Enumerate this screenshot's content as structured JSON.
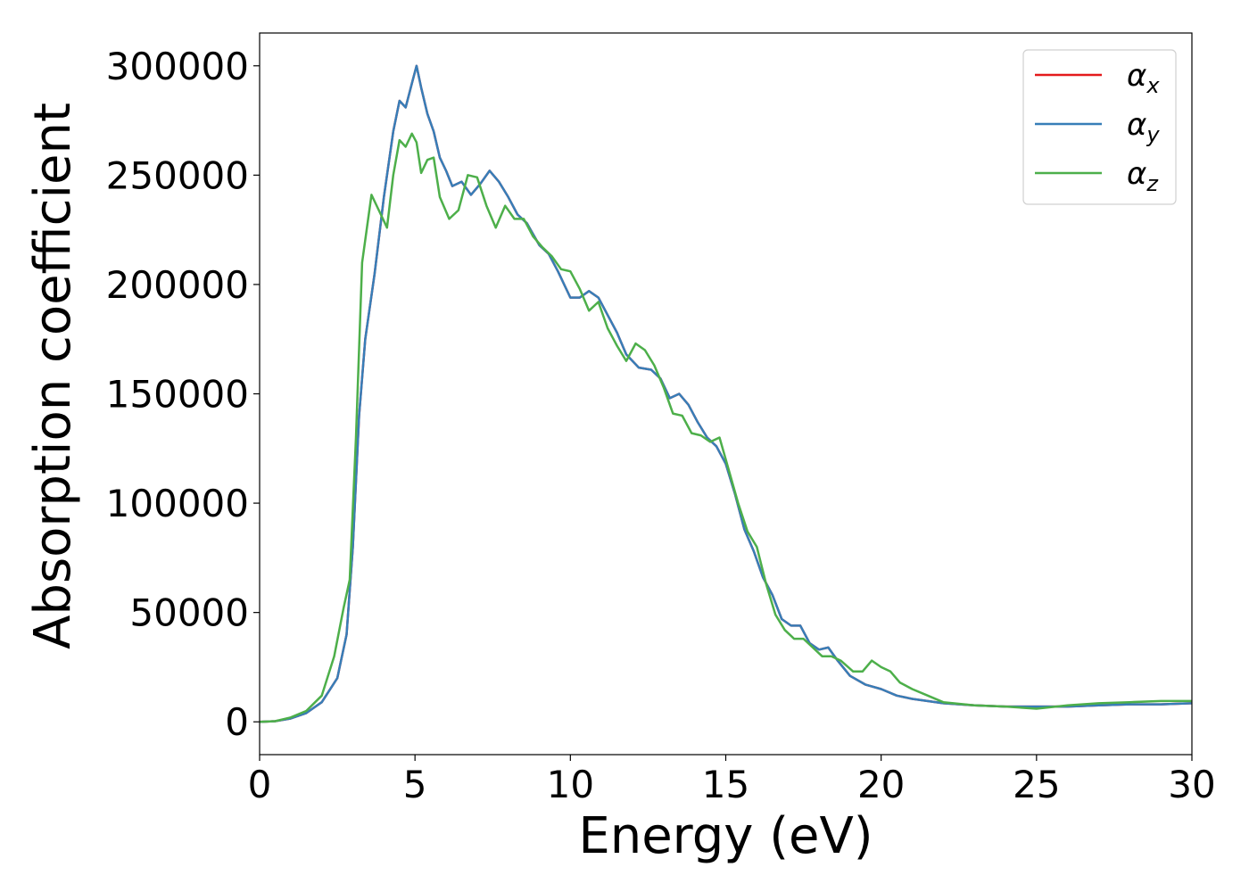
{
  "chart_data": {
    "type": "line",
    "title": "",
    "xlabel": "Energy (eV)",
    "ylabel": "Absorption coefficient",
    "xlim": [
      0,
      30
    ],
    "ylim": [
      -15000,
      315000
    ],
    "xticks": [
      0,
      5,
      10,
      15,
      20,
      25,
      30
    ],
    "yticks": [
      0,
      50000,
      100000,
      150000,
      200000,
      250000,
      300000
    ],
    "grid": false,
    "legend_position": "top-right",
    "series": [
      {
        "name": "αx",
        "legend_main": "α",
        "legend_sub": "x",
        "color": "#e41a1c",
        "x": [
          0,
          0.5,
          1.0,
          1.5,
          2.0,
          2.5,
          2.8,
          3.0,
          3.2,
          3.4,
          3.7,
          4.0,
          4.3,
          4.5,
          4.7,
          4.9,
          5.05,
          5.2,
          5.4,
          5.6,
          5.8,
          6.0,
          6.2,
          6.5,
          6.8,
          7.1,
          7.4,
          7.7,
          8.0,
          8.3,
          8.6,
          9.0,
          9.3,
          9.6,
          10.0,
          10.3,
          10.6,
          10.9,
          11.2,
          11.5,
          11.8,
          12.2,
          12.6,
          12.9,
          13.2,
          13.5,
          13.8,
          14.1,
          14.4,
          14.7,
          15.0,
          15.3,
          15.6,
          15.9,
          16.2,
          16.5,
          16.8,
          17.1,
          17.4,
          17.7,
          18.0,
          18.3,
          18.6,
          19.0,
          19.5,
          20.0,
          20.5,
          21.0,
          22.0,
          23.0,
          24.0,
          25.0,
          26.0,
          27.0,
          28.0,
          29.0,
          30.0
        ],
        "y": [
          0,
          300,
          1500,
          4000,
          9000,
          20000,
          40000,
          80000,
          140000,
          175000,
          205000,
          240000,
          270000,
          284000,
          281000,
          292000,
          300000,
          290000,
          278000,
          270000,
          258000,
          252000,
          245000,
          247000,
          241000,
          246000,
          252000,
          247000,
          240000,
          232000,
          228000,
          218000,
          214000,
          206000,
          194000,
          194000,
          197000,
          194000,
          186000,
          178000,
          168000,
          162000,
          161000,
          157000,
          148000,
          150000,
          145000,
          137000,
          130000,
          126000,
          118000,
          104000,
          88000,
          78000,
          66000,
          58000,
          47000,
          44000,
          44000,
          36000,
          33000,
          34000,
          28000,
          21000,
          17000,
          15000,
          12000,
          10500,
          8500,
          7500,
          7000,
          7000,
          7000,
          7500,
          8000,
          8000,
          8500
        ]
      },
      {
        "name": "αy",
        "legend_main": "α",
        "legend_sub": "y",
        "color": "#377eb8",
        "x": [
          0,
          0.5,
          1.0,
          1.5,
          2.0,
          2.5,
          2.8,
          3.0,
          3.2,
          3.4,
          3.7,
          4.0,
          4.3,
          4.5,
          4.7,
          4.9,
          5.05,
          5.2,
          5.4,
          5.6,
          5.8,
          6.0,
          6.2,
          6.5,
          6.8,
          7.1,
          7.4,
          7.7,
          8.0,
          8.3,
          8.6,
          9.0,
          9.3,
          9.6,
          10.0,
          10.3,
          10.6,
          10.9,
          11.2,
          11.5,
          11.8,
          12.2,
          12.6,
          12.9,
          13.2,
          13.5,
          13.8,
          14.1,
          14.4,
          14.7,
          15.0,
          15.3,
          15.6,
          15.9,
          16.2,
          16.5,
          16.8,
          17.1,
          17.4,
          17.7,
          18.0,
          18.3,
          18.6,
          19.0,
          19.5,
          20.0,
          20.5,
          21.0,
          22.0,
          23.0,
          24.0,
          25.0,
          26.0,
          27.0,
          28.0,
          29.0,
          30.0
        ],
        "y": [
          0,
          300,
          1500,
          4000,
          9000,
          20000,
          40000,
          80000,
          140000,
          175000,
          205000,
          240000,
          270000,
          284000,
          281000,
          292000,
          300000,
          290000,
          278000,
          270000,
          258000,
          252000,
          245000,
          247000,
          241000,
          246000,
          252000,
          247000,
          240000,
          232000,
          228000,
          218000,
          214000,
          206000,
          194000,
          194000,
          197000,
          194000,
          186000,
          178000,
          168000,
          162000,
          161000,
          157000,
          148000,
          150000,
          145000,
          137000,
          130000,
          126000,
          118000,
          104000,
          88000,
          78000,
          66000,
          58000,
          47000,
          44000,
          44000,
          36000,
          33000,
          34000,
          28000,
          21000,
          17000,
          15000,
          12000,
          10500,
          8500,
          7500,
          7000,
          7000,
          7000,
          7500,
          8000,
          8000,
          8500
        ]
      },
      {
        "name": "αz",
        "legend_main": "α",
        "legend_sub": "z",
        "color": "#4daf4a",
        "x": [
          0,
          0.5,
          1.0,
          1.5,
          2.0,
          2.4,
          2.7,
          2.9,
          3.1,
          3.3,
          3.6,
          3.9,
          4.1,
          4.3,
          4.5,
          4.7,
          4.9,
          5.05,
          5.2,
          5.4,
          5.6,
          5.8,
          6.1,
          6.4,
          6.7,
          7.0,
          7.3,
          7.6,
          7.9,
          8.2,
          8.5,
          8.8,
          9.1,
          9.4,
          9.7,
          10.0,
          10.3,
          10.6,
          10.9,
          11.2,
          11.5,
          11.8,
          12.1,
          12.4,
          12.7,
          13.0,
          13.3,
          13.6,
          13.9,
          14.2,
          14.5,
          14.8,
          15.1,
          15.4,
          15.7,
          16.0,
          16.3,
          16.6,
          16.9,
          17.2,
          17.5,
          17.8,
          18.1,
          18.4,
          18.7,
          19.1,
          19.4,
          19.7,
          20.0,
          20.3,
          20.6,
          21.0,
          21.5,
          22.0,
          23.0,
          24.0,
          25.0,
          26.0,
          27.0,
          28.0,
          29.0,
          30.0
        ],
        "y": [
          0,
          300,
          2000,
          5000,
          12000,
          30000,
          52000,
          65000,
          130000,
          210000,
          241000,
          232000,
          226000,
          250000,
          266000,
          263000,
          269000,
          265000,
          251000,
          257000,
          258000,
          240000,
          230000,
          234000,
          250000,
          249000,
          236000,
          226000,
          236000,
          230000,
          230000,
          222000,
          217000,
          213000,
          207000,
          206000,
          198000,
          188000,
          192000,
          180000,
          172000,
          165000,
          173000,
          170000,
          163000,
          153000,
          141000,
          140000,
          132000,
          131000,
          128000,
          130000,
          115000,
          100000,
          87000,
          80000,
          63000,
          49000,
          42000,
          38000,
          38000,
          34000,
          30000,
          30000,
          28000,
          23000,
          23000,
          28000,
          25000,
          23000,
          18000,
          15000,
          12000,
          9000,
          7500,
          7000,
          6000,
          7500,
          8500,
          9000,
          9500,
          9500
        ]
      }
    ]
  }
}
